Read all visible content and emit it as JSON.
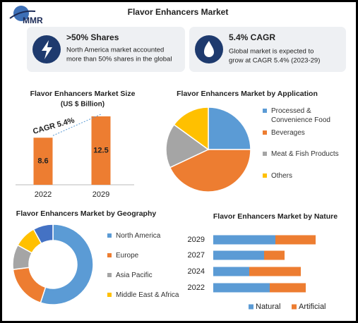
{
  "logo": "MMR",
  "title": "Flavor Enhancers Market",
  "stats": [
    {
      "heading": ">50% Shares",
      "body": [
        "North America market accounted",
        "more than 50% shares in the global"
      ]
    },
    {
      "heading": "5.4% CAGR",
      "body": [
        "Global market is expected to",
        "grow at CAGR 5.4% (2023-29)"
      ]
    }
  ],
  "chart_data": [
    {
      "type": "bar",
      "title": "Flavor Enhancers Market Size",
      "subtitle": "(US $ Billion)",
      "categories": [
        "2022",
        "2029"
      ],
      "values": [
        8.6,
        12.5
      ],
      "color": "#ed7d31",
      "annotation": "CAGR 5.4%"
    },
    {
      "type": "pie",
      "title": "Flavor Enhancers Market by Application",
      "categories": [
        "Processed & Convenience Food",
        "Beverages",
        "Meat & Fish Products",
        "Others"
      ],
      "values": [
        25,
        43,
        17,
        15
      ],
      "colors": [
        "#5b9bd5",
        "#ed7d31",
        "#a5a5a5",
        "#ffc000"
      ]
    },
    {
      "type": "donut",
      "title": "Flavor Enhancers Market by Geography",
      "categories": [
        "North America",
        "Europe",
        "Asia Pacific",
        "Middle East & Africa",
        null
      ],
      "values": [
        55,
        18,
        10,
        9,
        8
      ],
      "colors": [
        "#5b9bd5",
        "#ed7d31",
        "#a5a5a5",
        "#ffc000",
        "#4472c4"
      ]
    },
    {
      "type": "stacked-barh",
      "title": "Flavor Enhancers Market by Nature",
      "categories": [
        "2029",
        "2027",
        "2024",
        "2022"
      ],
      "series": [
        {
          "name": "Natural",
          "color": "#5b9bd5",
          "values": [
            88,
            72,
            51,
            80
          ]
        },
        {
          "name": "Artificial",
          "color": "#ed7d31",
          "values": [
            57,
            29,
            73,
            51
          ]
        }
      ]
    }
  ]
}
